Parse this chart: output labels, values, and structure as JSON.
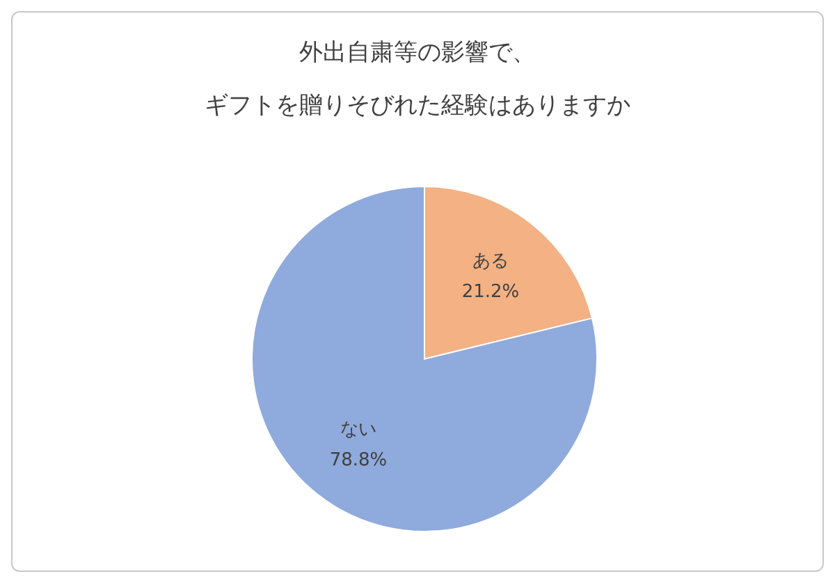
{
  "chart_data": {
    "type": "pie",
    "title": "外出自粛等の影響で、",
    "subtitle": "ギフトを贈りそびれた経験はありますか",
    "categories": [
      "ある",
      "ない"
    ],
    "values": [
      21.2,
      78.8
    ],
    "colors": [
      "#f4b183",
      "#8faadc"
    ],
    "value_labels": [
      "21.2%",
      "78.8%"
    ],
    "legend": false
  }
}
